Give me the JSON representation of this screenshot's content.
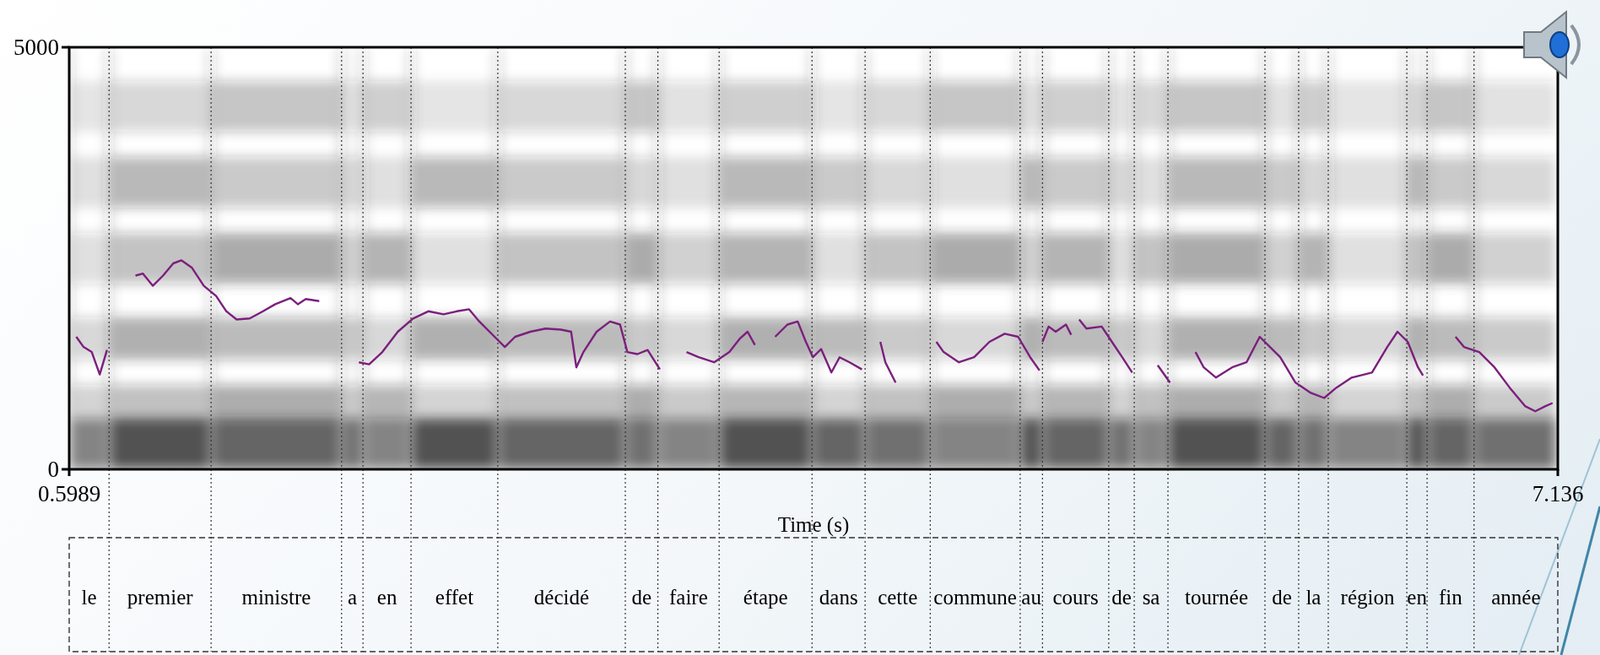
{
  "chart_data": {
    "type": "spectrogram",
    "x_label": "Time (s)",
    "xlim": [
      0.5989,
      7.136
    ],
    "xticks": [
      0.5989,
      7.136
    ],
    "ylim": [
      0,
      5000
    ],
    "yticks": [
      0,
      5000
    ],
    "words": [
      "le",
      "premier",
      "ministre",
      "a",
      "en",
      "effet",
      "décidé",
      "de",
      "faire",
      "étape",
      "dans",
      "cette",
      "commune",
      "au",
      "cours",
      "de",
      "sa",
      "tournée",
      "de",
      "la",
      "région",
      "en",
      "fin",
      "année"
    ],
    "boundaries": [
      0.5989,
      0.774,
      1.222,
      1.795,
      1.889,
      2.1,
      2.481,
      3.041,
      3.184,
      3.453,
      3.861,
      4.094,
      4.38,
      4.775,
      4.873,
      5.164,
      5.276,
      5.424,
      5.85,
      5.998,
      6.128,
      6.473,
      6.562,
      6.768,
      7.136
    ],
    "series": [
      {
        "color": "#7b1f7d",
        "line_style": "solid",
        "x": [
          0.63,
          0.662,
          0.698,
          0.733,
          0.765,
          0.827,
          0.89,
          0.922,
          0.966,
          1.011,
          1.056,
          1.092,
          1.137,
          1.19,
          1.244,
          1.289,
          1.334,
          1.392,
          1.45,
          1.504,
          1.571,
          1.603,
          1.638,
          1.697,
          1.773,
          1.871,
          1.916,
          1.974,
          2.042,
          2.109,
          2.176,
          2.243,
          2.301,
          2.355,
          2.4,
          2.467,
          2.512,
          2.557,
          2.624,
          2.691,
          2.758,
          2.803,
          2.826,
          2.857,
          2.915,
          2.974,
          3.018,
          3.05,
          3.094,
          3.139,
          3.193,
          3.251,
          3.31,
          3.363,
          3.431,
          3.498,
          3.543,
          3.578,
          3.61,
          3.655,
          3.699,
          3.753,
          3.798,
          3.834,
          3.865,
          3.901,
          3.946,
          3.982,
          4.026,
          4.08,
          4.12,
          4.161,
          4.183,
          4.228,
          4.318,
          4.407,
          4.439,
          4.506,
          4.573,
          4.64,
          4.707,
          4.766,
          4.819,
          4.86,
          4.866,
          4.873,
          4.9,
          4.931,
          4.976,
          4.999,
          5.016,
          5.034,
          5.066,
          5.133,
          5.178,
          5.223,
          5.267,
          5.321,
          5.379,
          5.433,
          5.491,
          5.545,
          5.581,
          5.635,
          5.706,
          5.769,
          5.827,
          5.872,
          5.917,
          5.984,
          6.051,
          6.11,
          6.163,
          6.231,
          6.32,
          6.387,
          6.432,
          6.477,
          6.522,
          6.544,
          6.611,
          6.687,
          6.724,
          6.791,
          6.858,
          6.925,
          6.992,
          7.037,
          7.082,
          7.113
        ],
        "values": [
          1570,
          1449,
          1389,
          1123,
          1413,
          null,
          2295,
          2319,
          2174,
          2295,
          2440,
          2476,
          2391,
          2174,
          2053,
          1872,
          1775,
          1787,
          1872,
          1956,
          2029,
          1956,
          2017,
          1993,
          null,
          1268,
          1244,
          1389,
          1630,
          1787,
          1872,
          1836,
          1872,
          1896,
          1751,
          1570,
          1449,
          1570,
          1630,
          1667,
          1655,
          1630,
          1208,
          1389,
          1630,
          1751,
          1715,
          1389,
          1365,
          1413,
          1184,
          null,
          1389,
          1328,
          1268,
          1389,
          1546,
          1630,
          1473,
          null,
          1570,
          1715,
          1751,
          1510,
          1328,
          1425,
          1147,
          1328,
          1268,
          1184,
          null,
          1510,
          1268,
          1027,
          null,
          1510,
          1389,
          1268,
          1328,
          1510,
          1606,
          1570,
          1328,
          1171,
          null,
          1510,
          1691,
          1630,
          1715,
          1594,
          null,
          1775,
          1667,
          1691,
          1510,
          1328,
          1147,
          null,
          1232,
          1027,
          null,
          1389,
          1208,
          1087,
          1208,
          1268,
          1570,
          1449,
          1328,
          1027,
          906,
          845,
          966,
          1087,
          1147,
          1449,
          1630,
          1510,
          1208,
          1111,
          null,
          1570,
          1449,
          1389,
          1208,
          966,
          749,
          688,
          749,
          785
        ]
      }
    ]
  }
}
